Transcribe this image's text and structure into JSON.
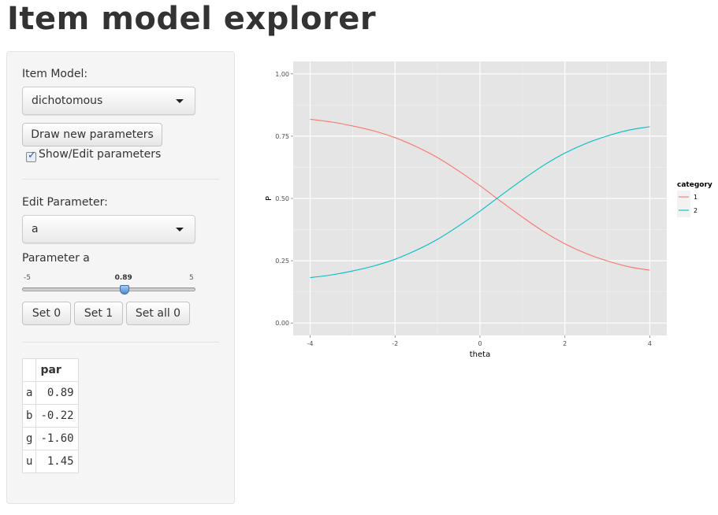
{
  "page": {
    "title": "Item model explorer"
  },
  "sidebar": {
    "item_model_label": "Item Model:",
    "item_model_value": "dichotomous",
    "draw_button": "Draw new parameters",
    "show_edit_label": "Show/Edit parameters",
    "show_edit_checked": true,
    "edit_param_label": "Edit Parameter:",
    "edit_param_value": "a",
    "slider": {
      "label": "Parameter a",
      "min": "-5",
      "max": "5",
      "value": "0.89",
      "value_num": 0.89,
      "min_num": -5,
      "max_num": 5
    },
    "buttons": {
      "set0": "Set 0",
      "set1": "Set 1",
      "setall0": "Set all 0"
    }
  },
  "param_table": {
    "header": "par",
    "rows": [
      {
        "name": "a",
        "value": "0.89"
      },
      {
        "name": "b",
        "value": "-0.22"
      },
      {
        "name": "g",
        "value": "-1.60"
      },
      {
        "name": "u",
        "value": "1.45"
      }
    ]
  },
  "chart_data": {
    "type": "line",
    "title": "",
    "xlabel": "theta",
    "ylabel": "P",
    "xlim": [
      -4.4,
      4.4
    ],
    "ylim": [
      -0.05,
      1.05
    ],
    "xticks": [
      -4,
      -2,
      0,
      2,
      4
    ],
    "xtick_labels": [
      "-4",
      "-2",
      "0",
      "2",
      "4"
    ],
    "yticks": [
      0.0,
      0.25,
      0.5,
      0.75,
      1.0
    ],
    "ytick_labels": [
      "0.00",
      "0.25",
      "0.50",
      "0.75",
      "1.00"
    ],
    "grid": true,
    "legend_title": "category",
    "legend_position": "right",
    "x": [
      -4,
      -3.5,
      -3,
      -2.5,
      -2,
      -1.5,
      -1,
      -0.5,
      0,
      0.5,
      1,
      1.5,
      2,
      2.5,
      3,
      3.5,
      4
    ],
    "series": [
      {
        "name": "1",
        "color": "#F8766D",
        "values": [
          0.818,
          0.807,
          0.791,
          0.771,
          0.744,
          0.708,
          0.664,
          0.61,
          0.551,
          0.487,
          0.425,
          0.367,
          0.318,
          0.279,
          0.249,
          0.226,
          0.212
        ]
      },
      {
        "name": "2",
        "color": "#00BFC4",
        "values": [
          0.182,
          0.193,
          0.209,
          0.229,
          0.256,
          0.292,
          0.336,
          0.39,
          0.449,
          0.513,
          0.575,
          0.633,
          0.682,
          0.721,
          0.751,
          0.774,
          0.788
        ]
      }
    ]
  }
}
